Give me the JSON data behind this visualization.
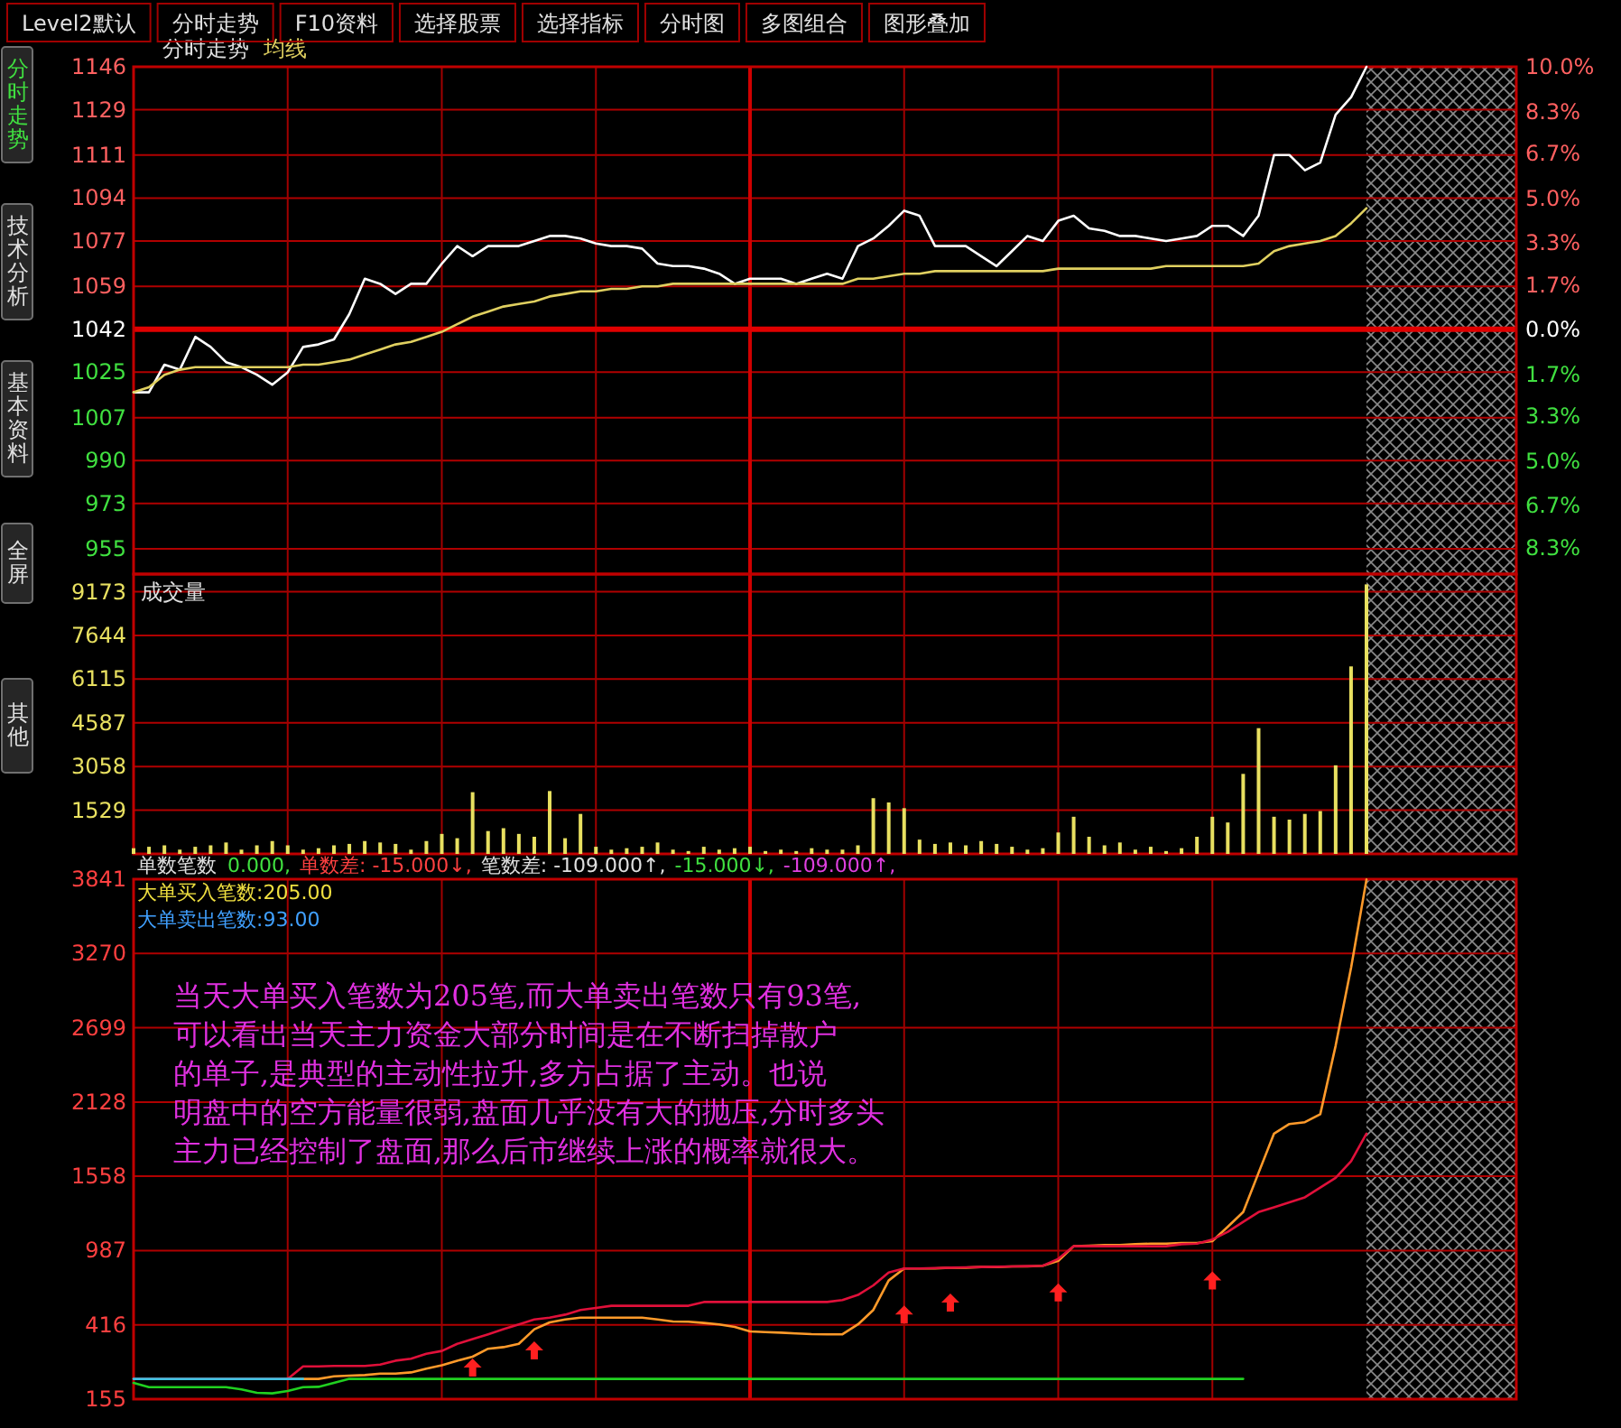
{
  "chart_data": [
    {
      "type": "line",
      "title": "分时走势",
      "categories": [
        null,
        null,
        null,
        null,
        null,
        null,
        null,
        null,
        null,
        null,
        null,
        null,
        null,
        null,
        null,
        null,
        null,
        null,
        null,
        null,
        null,
        null,
        null,
        null,
        null,
        null,
        null,
        null,
        null,
        null,
        null,
        null,
        null,
        null,
        null,
        null,
        null,
        null,
        null,
        null,
        null,
        null,
        null,
        null,
        null,
        null,
        null,
        null,
        null,
        null,
        null,
        null,
        null,
        null,
        null,
        null,
        null,
        null,
        null,
        null,
        null,
        null,
        null,
        null,
        null,
        null,
        null,
        null,
        null,
        null,
        null,
        null,
        null,
        null,
        null,
        null,
        null,
        null,
        null,
        null,
        null
      ],
      "series": [
        {
          "color": "#ffffff",
          "values": [
            1017,
            1017,
            1028,
            1026,
            1039,
            1035,
            1029,
            1027,
            1024,
            1020,
            1025,
            1035,
            1036,
            1038,
            1048,
            1062,
            1060,
            1056,
            1060,
            1060,
            1068,
            1075,
            1071,
            1075,
            1075,
            1075,
            1077,
            1079,
            1079,
            1078,
            1076,
            1075,
            1075,
            1074,
            1068,
            1067,
            1067,
            1066,
            1064,
            1060,
            1062,
            1062,
            1062,
            1060,
            1062,
            1064,
            1062,
            1075,
            1078,
            1083,
            1089,
            1087,
            1075,
            1075,
            1075,
            1071,
            1067,
            1073,
            1079,
            1077,
            1085,
            1087,
            1082,
            1081,
            1079,
            1079,
            1078,
            1077,
            1078,
            1079,
            1083,
            1083,
            1079,
            1087,
            1111,
            1111,
            1105,
            1108,
            1127,
            1134,
            1146
          ]
        },
        {
          "name": "均线",
          "color": "#e0d060",
          "values": [
            1017,
            1019,
            1024,
            1026,
            1027,
            1027,
            1027,
            1027,
            1027,
            1027,
            1027,
            1028,
            1028,
            1029,
            1030,
            1032,
            1034,
            1036,
            1037,
            1039,
            1041,
            1044,
            1047,
            1049,
            1051,
            1052,
            1053,
            1055,
            1056,
            1057,
            1057,
            1058,
            1058,
            1059,
            1059,
            1060,
            1060,
            1060,
            1060,
            1060,
            1060,
            1060,
            1060,
            1060,
            1060,
            1060,
            1060,
            1062,
            1062,
            1063,
            1064,
            1064,
            1065,
            1065,
            1065,
            1065,
            1065,
            1065,
            1065,
            1065,
            1066,
            1066,
            1066,
            1066,
            1066,
            1066,
            1066,
            1067,
            1067,
            1067,
            1067,
            1067,
            1067,
            1068,
            1073,
            1075,
            1076,
            1077,
            1079,
            1084,
            1090
          ]
        }
      ],
      "ylim": [
        945,
        1146
      ],
      "yticks": [
        955,
        973,
        990,
        1007,
        1025,
        1042,
        1059,
        1077,
        1094,
        1111,
        1129,
        1146
      ],
      "y2lim": [
        -9.3,
        10.0
      ],
      "y2ticks": [
        {
          "value": -8.3,
          "label": "8.3%"
        },
        {
          "value": -6.7,
          "label": "6.7%"
        },
        {
          "value": -5.0,
          "label": "5.0%"
        },
        {
          "value": -3.3,
          "label": "3.3%"
        },
        {
          "value": -1.7,
          "label": "1.7%"
        },
        {
          "value": 0,
          "label": "0.0%"
        },
        {
          "value": 1.7,
          "label": "1.7%"
        },
        {
          "value": 3.3,
          "label": "3.3%"
        },
        {
          "value": 5.0,
          "label": "5.0%"
        },
        {
          "value": 6.7,
          "label": "6.7%"
        },
        {
          "value": 8.3,
          "label": "8.3%"
        },
        {
          "value": 10.0,
          "label": "10.0%"
        }
      ],
      "ref_lines": [
        {
          "axis": "y",
          "value": 1042,
          "color": "#e00000"
        }
      ],
      "grid": true,
      "annotations": [
        "Level2默认",
        "分时走势",
        "F10资料",
        "选择股票",
        "选择指标",
        "分时图",
        "多图组合",
        "图形叠加",
        "分时走势",
        "技术分析",
        "基本资料",
        "全屏",
        "其他"
      ]
    },
    {
      "type": "bar",
      "title": "成交量",
      "color": "#e8e060",
      "categories": [
        null,
        null,
        null,
        null,
        null,
        null,
        null,
        null,
        null,
        null,
        null,
        null,
        null,
        null,
        null,
        null,
        null,
        null,
        null,
        null,
        null,
        null,
        null,
        null,
        null,
        null,
        null,
        null,
        null,
        null,
        null,
        null,
        null,
        null,
        null,
        null,
        null,
        null,
        null,
        null,
        null,
        null,
        null,
        null,
        null,
        null,
        null,
        null,
        null,
        null,
        null,
        null,
        null,
        null,
        null,
        null,
        null,
        null,
        null,
        null,
        null,
        null,
        null,
        null,
        null,
        null,
        null,
        null,
        null,
        null,
        null,
        null,
        null,
        null,
        null,
        null,
        null,
        null,
        null,
        null,
        null
      ],
      "values": [
        200,
        250,
        300,
        150,
        250,
        300,
        400,
        150,
        300,
        450,
        300,
        150,
        200,
        300,
        350,
        450,
        400,
        350,
        150,
        450,
        700,
        550,
        2160,
        800,
        900,
        700,
        600,
        2200,
        550,
        1400,
        250,
        150,
        200,
        250,
        400,
        150,
        100,
        250,
        150,
        200,
        250,
        100,
        150,
        100,
        200,
        150,
        150,
        300,
        1950,
        1800,
        1600,
        500,
        350,
        400,
        300,
        450,
        350,
        250,
        150,
        200,
        750,
        1300,
        600,
        300,
        400,
        150,
        250,
        100,
        200,
        600,
        1300,
        1100,
        2800,
        4400,
        1300,
        1200,
        1400,
        1500,
        3100,
        6560,
        9430
      ],
      "ylim": [
        0,
        9790
      ],
      "yticks": [
        1529,
        3058,
        4587,
        6115,
        7644,
        9173
      ],
      "grid": true
    },
    {
      "type": "line",
      "title": "单数笔数",
      "categories": [
        null,
        null,
        null,
        null,
        null,
        null,
        null,
        null,
        null,
        null,
        null,
        null,
        null,
        null,
        null,
        null,
        null,
        null,
        null,
        null,
        null,
        null,
        null,
        null,
        null,
        null,
        null,
        null,
        null,
        null,
        null,
        null,
        null,
        null,
        null,
        null,
        null,
        null,
        null,
        null,
        null,
        null,
        null,
        null,
        null,
        null,
        null,
        null,
        null,
        null,
        null,
        null,
        null,
        null,
        null,
        null,
        null,
        null,
        null,
        null,
        null,
        null,
        null,
        null,
        null,
        null,
        null,
        null,
        null,
        null,
        null,
        null,
        null,
        null,
        null,
        null,
        null,
        null,
        null,
        null,
        null
      ],
      "series": [
        {
          "color": "#ff9a2a",
          "values": [
            null,
            null,
            null,
            null,
            null,
            null,
            null,
            null,
            null,
            null,
            0,
            0,
            0,
            20,
            25,
            30,
            40,
            40,
            50,
            80,
            104,
            141,
            171,
            232,
            245,
            269,
            382,
            434,
            457,
            471,
            471,
            471,
            471,
            471,
            457,
            442,
            440,
            430,
            420,
            400,
            366,
            360,
            355,
            350,
            345,
            343,
            343,
            420,
            531,
            757,
            849,
            849,
            849,
            855,
            855,
            860,
            860,
            865,
            865,
            870,
            908,
            1020,
            1025,
            1030,
            1030,
            1035,
            1040,
            1040,
            1045,
            1045,
            1059,
            1170,
            1282,
            1584,
            1886,
            1959,
            1974,
            2035,
            2561,
            3162,
            3838
          ]
        },
        {
          "color": "#e0103a",
          "values": [
            0,
            0,
            0,
            0,
            0,
            0,
            0,
            0,
            0,
            0,
            0,
            96,
            96,
            100,
            100,
            100,
            110,
            141,
            156,
            193,
            216,
            269,
            306,
            343,
            382,
            420,
            457,
            471,
            495,
            531,
            546,
            562,
            562,
            562,
            562,
            562,
            562,
            592,
            592,
            592,
            592,
            592,
            592,
            592,
            592,
            592,
            607,
            646,
            719,
            817,
            849,
            849,
            852,
            855,
            858,
            860,
            862,
            865,
            868,
            870,
            923,
            1020,
            1020,
            1020,
            1020,
            1020,
            1020,
            1020,
            1036,
            1040,
            1072,
            1131,
            1208,
            1282,
            1320,
            1358,
            1396,
            1471,
            1546,
            1674,
            1886
          ]
        },
        {
          "color": "#20d020",
          "values": [
            -30,
            -64,
            -64,
            -64,
            -64,
            -64,
            -64,
            -80,
            -107,
            -110,
            -93,
            -64,
            -60,
            -30,
            0,
            0,
            0,
            0,
            0,
            0,
            0,
            0,
            0,
            0,
            0,
            0,
            0,
            0,
            0,
            0,
            0,
            0,
            0,
            0,
            0,
            0,
            0,
            0,
            0,
            0,
            0,
            0,
            0,
            0,
            0,
            0,
            0,
            0,
            0,
            0,
            0,
            0,
            0,
            0,
            0,
            0,
            0,
            0,
            0,
            0,
            0,
            0,
            0,
            0,
            0,
            0,
            0,
            0,
            0,
            0,
            0,
            0,
            0,
            null,
            null,
            null,
            null,
            null,
            null,
            null,
            null
          ]
        },
        {
          "color": "#40c0e0",
          "values": [
            0,
            0,
            0,
            0,
            0,
            0,
            0,
            0,
            0,
            0,
            0,
            0,
            null,
            null,
            null,
            null,
            null,
            null,
            null,
            null,
            null,
            null,
            null,
            null,
            null,
            null,
            null,
            null,
            null,
            null,
            null,
            null,
            null,
            null,
            null,
            null,
            null,
            null,
            null,
            null,
            null,
            null,
            null,
            null,
            null,
            null,
            null,
            null,
            null,
            null,
            null,
            null,
            null,
            null,
            null,
            null,
            null,
            null,
            null,
            null,
            null,
            null,
            null,
            null,
            null,
            null,
            null,
            null,
            null,
            null,
            null,
            null,
            null,
            null,
            null,
            null,
            null,
            null,
            null,
            null,
            null
          ]
        },
        {
          "type": "scatter",
          "marker": "triangle",
          "color": "#ff2020",
          "values": [
            null,
            null,
            null,
            null,
            null,
            null,
            null,
            null,
            null,
            null,
            null,
            null,
            null,
            null,
            null,
            null,
            null,
            null,
            null,
            null,
            null,
            null,
            88,
            null,
            null,
            null,
            219,
            null,
            null,
            null,
            null,
            null,
            null,
            null,
            null,
            null,
            null,
            null,
            null,
            null,
            null,
            null,
            null,
            null,
            null,
            null,
            null,
            null,
            null,
            null,
            495,
            null,
            null,
            587,
            null,
            null,
            null,
            null,
            null,
            null,
            665,
            null,
            null,
            null,
            null,
            null,
            null,
            null,
            null,
            null,
            757,
            null,
            null,
            null,
            null,
            null,
            null,
            null,
            null,
            null,
            null
          ]
        }
      ],
      "ylim": [
        -155,
        3841
      ],
      "yticks": [
        {
          "value": -155,
          "label": "155"
        },
        416,
        987,
        1558,
        2128,
        2699,
        3270,
        3841
      ],
      "grid": true,
      "annotations": [
        "0.000,",
        "单数差: -15.000↓,",
        "笔数差: -109.000↑,",
        "-15.000↓,",
        "-109.000↑,",
        "大单买入笔数:205.00",
        "大单卖出笔数:93.00",
        "当天大单买入笔数为205笔,而大单卖出笔数只有93笔,",
        "可以看出当天主力资金大部分时间是在不断扫掉散户",
        "的单子,是典型的主动性拉升,多方占据了主动。也说",
        "明盘中的空方能量很弱,盘面几乎没有大的抛压,分时多头",
        "主力已经控制了盘面,那么后市继续上涨的概率就很大。"
      ]
    }
  ]
}
